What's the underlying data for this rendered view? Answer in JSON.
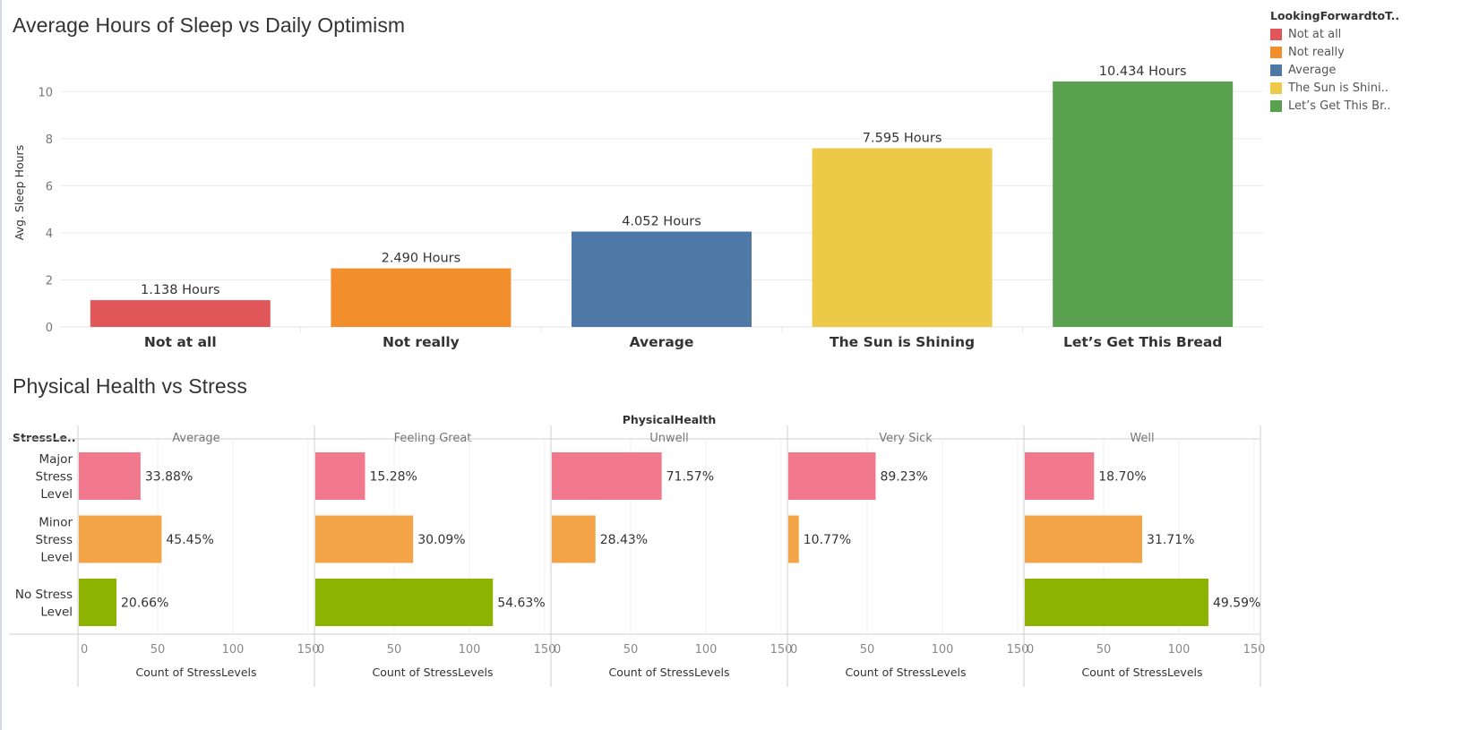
{
  "chart_data": [
    {
      "type": "bar",
      "title": "Average Hours of Sleep vs Daily Optimism",
      "xlabel": "",
      "ylabel": "Avg. Sleep Hours",
      "ylim": [
        0,
        11.8
      ],
      "yticks": [
        0,
        2,
        4,
        6,
        8,
        10
      ],
      "grid": true,
      "categories": [
        "Not at all",
        "Not really",
        "Average",
        "The Sun is Shining",
        "Let’s Get This Bread"
      ],
      "values": [
        1.138,
        2.49,
        4.052,
        7.595,
        10.434
      ],
      "data_labels": [
        "1.138 Hours",
        "2.490 Hours",
        "4.052 Hours",
        "7.595 Hours",
        "10.434 Hours"
      ],
      "colors": [
        "#e15759",
        "#f28e2b",
        "#4e79a7",
        "#edc948",
        "#59a14f"
      ],
      "legend": {
        "title": "LookingForwardtoT..",
        "placement": "top-right",
        "items": [
          {
            "label": "Not at all",
            "color": "#e15759"
          },
          {
            "label": "Not really",
            "color": "#f28e2b"
          },
          {
            "label": "Average",
            "color": "#4e79a7"
          },
          {
            "label": "The Sun is Shini..",
            "color": "#edc948"
          },
          {
            "label": "Let’s Get This Br..",
            "color": "#59a14f"
          }
        ]
      }
    },
    {
      "type": "bar",
      "orientation": "horizontal",
      "title": "Physical Health vs Stress",
      "column_header": "PhysicalHealth",
      "row_header": "StressLe..",
      "xlabel": "Count of StressLevels",
      "xlim": [
        0,
        158
      ],
      "xticks": [
        0,
        50,
        100,
        150
      ],
      "grid": true,
      "rows": [
        "Major Stress Level",
        "Minor Stress Level",
        "No Stress Level"
      ],
      "row_label_lines": [
        [
          "Major",
          "Stress",
          "Level"
        ],
        [
          "Minor",
          "Stress",
          "Level"
        ],
        [
          "No Stress",
          "Level"
        ]
      ],
      "row_colors": [
        "#f1788d",
        "#f2a447",
        "#8cb300"
      ],
      "panels": [
        {
          "name": "Average",
          "values": [
            41,
            55,
            25
          ],
          "labels": [
            "33.88%",
            "45.45%",
            "20.66%"
          ]
        },
        {
          "name": "Feeling Great",
          "values": [
            33,
            65,
            118
          ],
          "labels": [
            "15.28%",
            "30.09%",
            "54.63%"
          ]
        },
        {
          "name": "Unwell",
          "values": [
            73,
            29,
            null
          ],
          "labels": [
            "71.57%",
            "28.43%",
            null
          ]
        },
        {
          "name": "Very Sick",
          "values": [
            58,
            7,
            null
          ],
          "labels": [
            "89.23%",
            "10.77%",
            null
          ]
        },
        {
          "name": "Well",
          "values": [
            46,
            78,
            122
          ],
          "labels": [
            "18.70%",
            "31.71%",
            "49.59%"
          ]
        }
      ]
    }
  ]
}
